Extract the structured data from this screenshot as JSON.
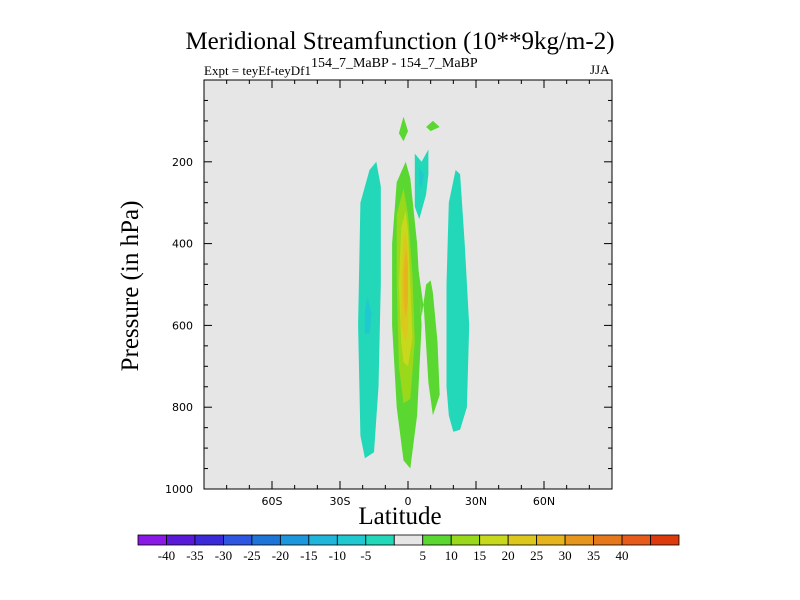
{
  "chart_data": {
    "type": "contour",
    "title": "Meridional Streamfunction (10**9kg/m-2)",
    "subtitle_left": "Expt = teyEf-teyDf1",
    "subtitle_center": "154_7_MaBP - 154_7_MaBP",
    "subtitle_right": "JJA",
    "xlabel": "Latitude",
    "ylabel": "Pressure (in hPa)",
    "xlim": [
      -90,
      90
    ],
    "ylim": [
      1000,
      0
    ],
    "xticks": [
      {
        "value": -60,
        "label": "60S"
      },
      {
        "value": -30,
        "label": "30S"
      },
      {
        "value": 0,
        "label": "0"
      },
      {
        "value": 30,
        "label": "30N"
      },
      {
        "value": 60,
        "label": "60N"
      }
    ],
    "yticks": [
      200,
      400,
      600,
      800,
      1000
    ],
    "missing_color": "#e6e6e6",
    "colorbar": {
      "colors": [
        "#8a19e6",
        "#5a19d8",
        "#3a2ad8",
        "#2f56e0",
        "#1f74d8",
        "#1c96dc",
        "#20b6dc",
        "#20c8d0",
        "#22d8b8",
        "#e6e6e6",
        "#5ad831",
        "#9ad81c",
        "#c8d81c",
        "#dcc81c",
        "#e6b41c",
        "#e6961c",
        "#e6781c",
        "#e65a1c",
        "#dc3a0c"
      ],
      "labels": [
        "-40",
        "-35",
        "-30",
        "-25",
        "-20",
        "-15",
        "-10",
        "-5",
        "5",
        "10",
        "15",
        "20",
        "25",
        "30",
        "35",
        "40"
      ]
    },
    "features": [
      {
        "name": "cell-south-band",
        "level": -5,
        "points": [
          [
            -21,
            870
          ],
          [
            -22,
            600
          ],
          [
            -21,
            300
          ],
          [
            -17,
            220
          ],
          [
            -14,
            200
          ],
          [
            -12,
            260
          ],
          [
            -12,
            500
          ],
          [
            -13,
            750
          ],
          [
            -15,
            910
          ],
          [
            -19,
            925
          ]
        ]
      },
      {
        "name": "cell-south-core",
        "level": -10,
        "points": [
          [
            -19,
            620
          ],
          [
            -19,
            570
          ],
          [
            -18,
            530
          ],
          [
            -16,
            570
          ],
          [
            -17,
            620
          ]
        ]
      },
      {
        "name": "cell-north-band",
        "level": -5,
        "points": [
          [
            17,
            750
          ],
          [
            17,
            500
          ],
          [
            18,
            300
          ],
          [
            21,
            220
          ],
          [
            23,
            230
          ],
          [
            25,
            400
          ],
          [
            27,
            600
          ],
          [
            26,
            800
          ],
          [
            23,
            855
          ],
          [
            20,
            860
          ],
          [
            18,
            820
          ]
        ]
      },
      {
        "name": "cell-upper-small",
        "level": -5,
        "points": [
          [
            3,
            180
          ],
          [
            6,
            200
          ],
          [
            9,
            170
          ],
          [
            9,
            230
          ],
          [
            8,
            280
          ],
          [
            5,
            340
          ],
          [
            3,
            310
          ],
          [
            3,
            240
          ]
        ]
      },
      {
        "name": "cell-upper-core",
        "level": -10,
        "points": [
          [
            5,
            215
          ],
          [
            7,
            230
          ],
          [
            6,
            265
          ],
          [
            5,
            250
          ]
        ]
      },
      {
        "name": "cell-top-left",
        "level": 5,
        "points": [
          [
            -4,
            130
          ],
          [
            -2,
            90
          ],
          [
            0,
            125
          ],
          [
            -2,
            150
          ]
        ]
      },
      {
        "name": "cell-top-right",
        "level": 5,
        "points": [
          [
            8,
            115
          ],
          [
            11,
            100
          ],
          [
            14,
            115
          ],
          [
            10,
            125
          ]
        ]
      },
      {
        "name": "cell-north-arm",
        "level": 5,
        "points": [
          [
            3,
            400
          ],
          [
            7,
            560
          ],
          [
            9,
            740
          ],
          [
            11,
            820
          ],
          [
            14,
            770
          ],
          [
            13,
            640
          ],
          [
            11,
            520
          ],
          [
            10,
            490
          ],
          [
            8,
            500
          ],
          [
            6,
            580
          ],
          [
            4,
            460
          ]
        ]
      },
      {
        "name": "cell-main",
        "level": 5,
        "points": [
          [
            -5,
            800
          ],
          [
            -7,
            600
          ],
          [
            -7,
            400
          ],
          [
            -5,
            250
          ],
          [
            -1,
            200
          ],
          [
            1,
            240
          ],
          [
            4,
            400
          ],
          [
            6,
            600
          ],
          [
            4,
            820
          ],
          [
            1,
            950
          ],
          [
            -2,
            930
          ]
        ]
      },
      {
        "name": "cell-main-10",
        "level": 10,
        "points": [
          [
            -4,
            700
          ],
          [
            -5,
            500
          ],
          [
            -5,
            330
          ],
          [
            -2,
            265
          ],
          [
            0,
            330
          ],
          [
            2,
            480
          ],
          [
            3,
            640
          ],
          [
            1,
            780
          ],
          [
            -2,
            790
          ]
        ]
      },
      {
        "name": "cell-main-15",
        "level": 15,
        "points": [
          [
            -3,
            640
          ],
          [
            -4,
            500
          ],
          [
            -3,
            360
          ],
          [
            -1,
            320
          ],
          [
            0,
            370
          ],
          [
            1,
            500
          ],
          [
            2,
            630
          ],
          [
            0,
            700
          ],
          [
            -2,
            690
          ]
        ]
      },
      {
        "name": "cell-main-20",
        "level": 20,
        "points": [
          [
            -3,
            600
          ],
          [
            -3,
            500
          ],
          [
            -2,
            390
          ],
          [
            -1,
            370
          ],
          [
            0,
            420
          ],
          [
            0,
            520
          ],
          [
            0,
            610
          ],
          [
            -1,
            640
          ]
        ]
      },
      {
        "name": "cell-main-25",
        "level": 25,
        "points": [
          [
            -2,
            540
          ],
          [
            -2,
            470
          ],
          [
            -1,
            410
          ],
          [
            0,
            450
          ],
          [
            0,
            540
          ],
          [
            -1,
            580
          ]
        ]
      }
    ]
  }
}
